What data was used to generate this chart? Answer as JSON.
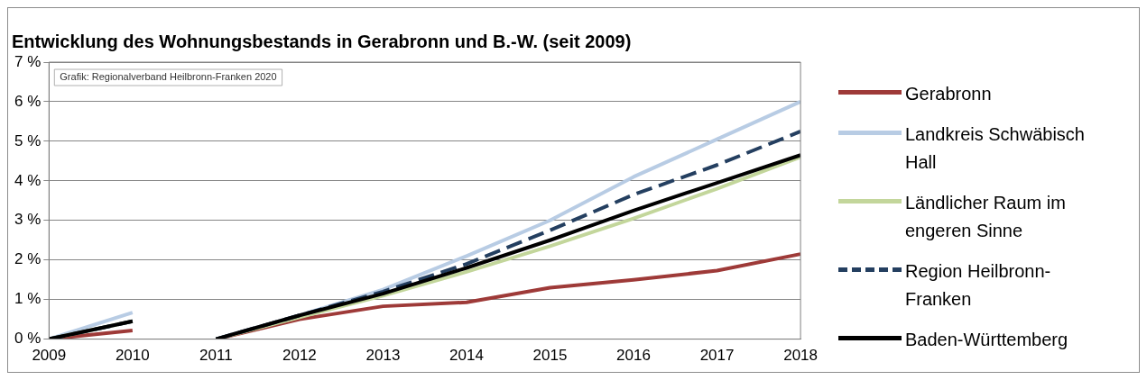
{
  "chart_data": {
    "type": "line",
    "title": "Entwicklung des Wohnungsbestands in Gerabronn und B.-W. (seit 2009)",
    "annotations": [
      "Grafik: Regionalverband Heilbronn-Franken 2020"
    ],
    "x": [
      2009,
      2010,
      2011,
      2012,
      2013,
      2014,
      2015,
      2016,
      2017,
      2018
    ],
    "xlim": [
      2009,
      2018
    ],
    "xticks": [
      2009,
      2010,
      2011,
      2012,
      2013,
      2014,
      2015,
      2016,
      2017,
      2018
    ],
    "ylim": [
      0,
      7
    ],
    "yticks": [
      {
        "value": 0,
        "label": "0 %"
      },
      {
        "value": 1,
        "label": "1 %"
      },
      {
        "value": 2,
        "label": "2 %"
      },
      {
        "value": 3,
        "label": "3 %"
      },
      {
        "value": 4,
        "label": "4 %"
      },
      {
        "value": 5,
        "label": "5 %"
      },
      {
        "value": 6,
        "label": "6 %"
      },
      {
        "value": 7,
        "label": "7 %"
      }
    ],
    "grid": "y",
    "legend": "right",
    "marker": "none",
    "series": [
      {
        "name": "Gerabronn",
        "color": "#9e3a38",
        "values": [
          0,
          0.22,
          0,
          0.5,
          0.83,
          0.93,
          1.3,
          1.5,
          1.73,
          2.15
        ]
      },
      {
        "name": "Landkreis Schwäbisch Hall",
        "color": "#b8cce4",
        "values": [
          0,
          0.67,
          0,
          0.6,
          1.25,
          2.1,
          3.0,
          4.1,
          5.05,
          6.0
        ]
      },
      {
        "name": "Ländlicher Raum im engeren Sinne",
        "color": "#c3d69b",
        "values": [
          0,
          0.45,
          0,
          0.55,
          1.1,
          1.7,
          2.35,
          3.05,
          3.8,
          4.6
        ]
      },
      {
        "name": "Region Heilbronn-Franken",
        "color": "#243f60",
        "line_style": "dashed",
        "values": [
          0,
          0.45,
          0,
          0.6,
          1.2,
          1.9,
          2.75,
          3.65,
          4.4,
          5.25
        ]
      },
      {
        "name": "Baden-Württemberg",
        "color": "#000000",
        "values": [
          0,
          0.45,
          0,
          0.6,
          1.15,
          1.8,
          2.5,
          3.25,
          3.95,
          4.65
        ]
      }
    ]
  }
}
